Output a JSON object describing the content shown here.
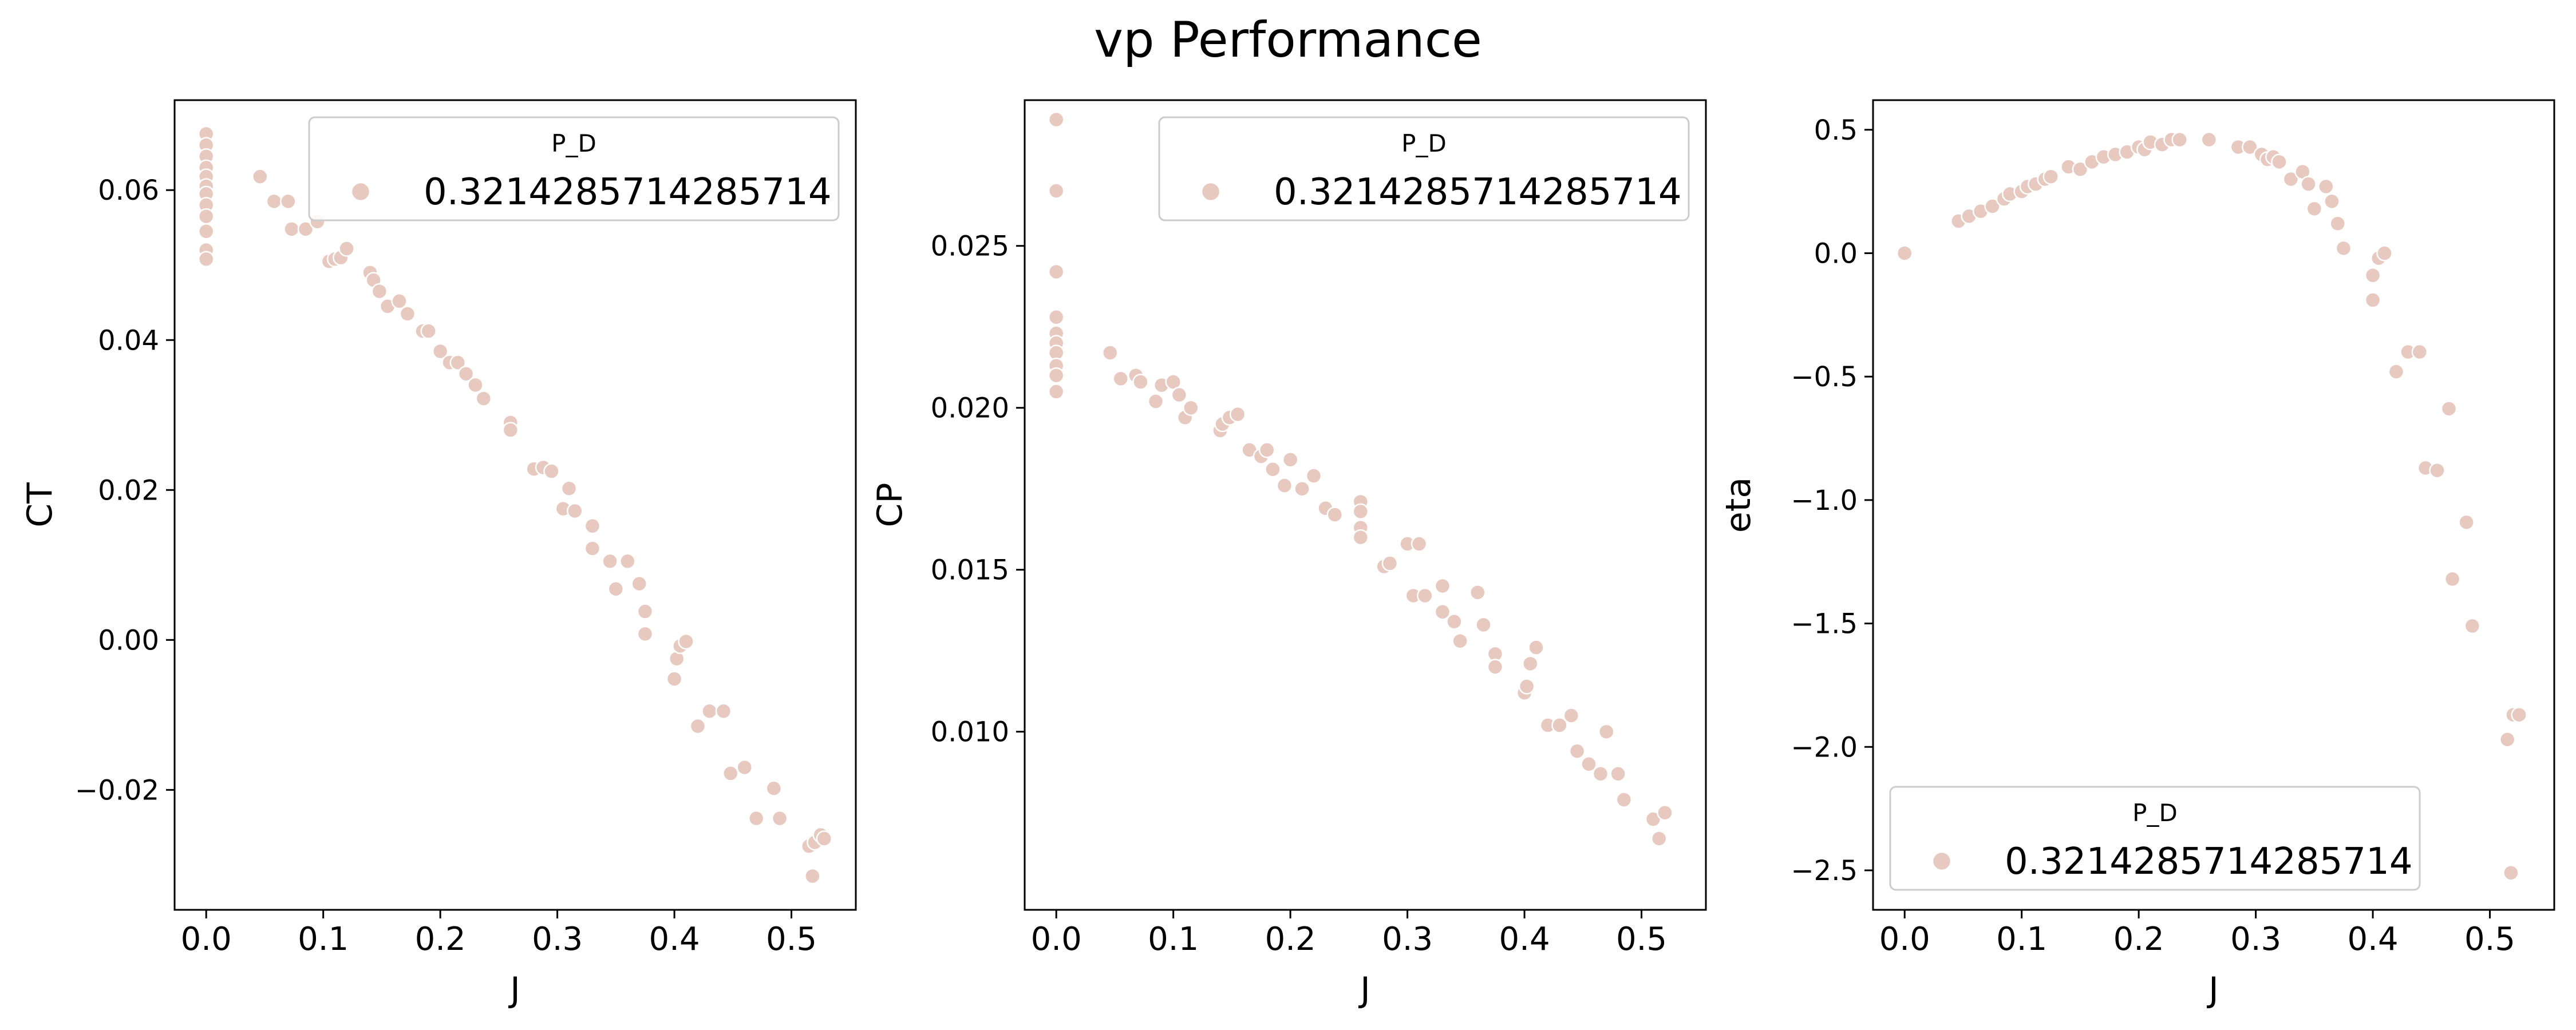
{
  "figure": {
    "title": "vp Performance"
  },
  "style": {
    "marker_color": "#e7c9bf",
    "marker_edge": "#ffffff",
    "axes_color": "#000000",
    "legend_edge": "#cccccc"
  },
  "chart_data": [
    {
      "type": "scatter",
      "xlabel": "J",
      "ylabel": "CT",
      "xlim": [
        -0.027,
        0.555
      ],
      "ylim": [
        -0.036,
        0.072
      ],
      "xticks": [
        0.0,
        0.1,
        0.2,
        0.3,
        0.4,
        0.5
      ],
      "xtick_labels": [
        "0.0",
        "0.1",
        "0.2",
        "0.3",
        "0.4",
        "0.5"
      ],
      "yticks": [
        -0.02,
        0.0,
        0.02,
        0.04,
        0.06
      ],
      "ytick_labels": [
        "−0.02",
        "0.00",
        "0.02",
        "0.04",
        "0.06"
      ],
      "legend": {
        "title": "P_D",
        "entries": [
          "0.3214285714285714"
        ],
        "placement": "top-right"
      },
      "grid": false,
      "series": [
        {
          "name": "0.3214285714285714",
          "points": [
            [
              0.0,
              0.0675
            ],
            [
              0.0,
              0.066
            ],
            [
              0.0,
              0.0645
            ],
            [
              0.0,
              0.063
            ],
            [
              0.0,
              0.0618
            ],
            [
              0.0,
              0.0605
            ],
            [
              0.0,
              0.0595
            ],
            [
              0.0,
              0.058
            ],
            [
              0.0,
              0.0565
            ],
            [
              0.0,
              0.0545
            ],
            [
              0.0,
              0.052
            ],
            [
              0.0,
              0.0508
            ],
            [
              0.046,
              0.0618
            ],
            [
              0.058,
              0.0585
            ],
            [
              0.07,
              0.0585
            ],
            [
              0.073,
              0.0548
            ],
            [
              0.085,
              0.0548
            ],
            [
              0.095,
              0.0558
            ],
            [
              0.105,
              0.0505
            ],
            [
              0.11,
              0.0508
            ],
            [
              0.115,
              0.051
            ],
            [
              0.12,
              0.0522
            ],
            [
              0.14,
              0.049
            ],
            [
              0.143,
              0.048
            ],
            [
              0.148,
              0.0465
            ],
            [
              0.155,
              0.0445
            ],
            [
              0.165,
              0.0452
            ],
            [
              0.172,
              0.0435
            ],
            [
              0.185,
              0.0412
            ],
            [
              0.19,
              0.0412
            ],
            [
              0.2,
              0.0385
            ],
            [
              0.208,
              0.037
            ],
            [
              0.215,
              0.037
            ],
            [
              0.222,
              0.0355
            ],
            [
              0.23,
              0.034
            ],
            [
              0.237,
              0.0322
            ],
            [
              0.26,
              0.029
            ],
            [
              0.26,
              0.028
            ],
            [
              0.28,
              0.0228
            ],
            [
              0.288,
              0.023
            ],
            [
              0.295,
              0.0225
            ],
            [
              0.305,
              0.0175
            ],
            [
              0.31,
              0.0202
            ],
            [
              0.315,
              0.0172
            ],
            [
              0.33,
              0.0152
            ],
            [
              0.33,
              0.0122
            ],
            [
              0.345,
              0.0105
            ],
            [
              0.35,
              0.0068
            ],
            [
              0.36,
              0.0105
            ],
            [
              0.37,
              0.0075
            ],
            [
              0.375,
              0.0038
            ],
            [
              0.375,
              0.0008
            ],
            [
              0.4,
              -0.0052
            ],
            [
              0.402,
              -0.0025
            ],
            [
              0.405,
              -0.0008
            ],
            [
              0.41,
              -0.0002
            ],
            [
              0.42,
              -0.0115
            ],
            [
              0.43,
              -0.0095
            ],
            [
              0.442,
              -0.0095
            ],
            [
              0.448,
              -0.0178
            ],
            [
              0.46,
              -0.017
            ],
            [
              0.47,
              -0.0238
            ],
            [
              0.485,
              -0.0198
            ],
            [
              0.49,
              -0.0238
            ],
            [
              0.515,
              -0.0275
            ],
            [
              0.518,
              -0.0315
            ],
            [
              0.52,
              -0.027
            ],
            [
              0.525,
              -0.026
            ],
            [
              0.528,
              -0.0265
            ]
          ]
        }
      ]
    },
    {
      "type": "scatter",
      "xlabel": "J",
      "ylabel": "CP",
      "xlim": [
        -0.027,
        0.555
      ],
      "ylim": [
        0.0045,
        0.0295
      ],
      "xticks": [
        0.0,
        0.1,
        0.2,
        0.3,
        0.4,
        0.5
      ],
      "xtick_labels": [
        "0.0",
        "0.1",
        "0.2",
        "0.3",
        "0.4",
        "0.5"
      ],
      "yticks": [
        0.01,
        0.015,
        0.02,
        0.025
      ],
      "ytick_labels": [
        "0.010",
        "0.015",
        "0.020",
        "0.025"
      ],
      "legend": {
        "title": "P_D",
        "entries": [
          "0.3214285714285714"
        ],
        "placement": "top-right"
      },
      "grid": false,
      "series": [
        {
          "name": "0.3214285714285714",
          "points": [
            [
              0.0,
              0.0289
            ],
            [
              0.0,
              0.0267
            ],
            [
              0.0,
              0.0242
            ],
            [
              0.0,
              0.0228
            ],
            [
              0.0,
              0.0223
            ],
            [
              0.0,
              0.022
            ],
            [
              0.0,
              0.0217
            ],
            [
              0.0,
              0.0213
            ],
            [
              0.0,
              0.021
            ],
            [
              0.0,
              0.0205
            ],
            [
              0.046,
              0.0217
            ],
            [
              0.055,
              0.0209
            ],
            [
              0.068,
              0.021
            ],
            [
              0.072,
              0.0208
            ],
            [
              0.085,
              0.0202
            ],
            [
              0.09,
              0.0207
            ],
            [
              0.1,
              0.0208
            ],
            [
              0.105,
              0.0204
            ],
            [
              0.11,
              0.0197
            ],
            [
              0.115,
              0.02
            ],
            [
              0.14,
              0.0193
            ],
            [
              0.142,
              0.0195
            ],
            [
              0.148,
              0.0197
            ],
            [
              0.155,
              0.0198
            ],
            [
              0.165,
              0.0187
            ],
            [
              0.175,
              0.0185
            ],
            [
              0.18,
              0.0187
            ],
            [
              0.185,
              0.0181
            ],
            [
              0.195,
              0.0176
            ],
            [
              0.2,
              0.0184
            ],
            [
              0.21,
              0.0175
            ],
            [
              0.22,
              0.0179
            ],
            [
              0.23,
              0.0169
            ],
            [
              0.238,
              0.0167
            ],
            [
              0.26,
              0.0171
            ],
            [
              0.26,
              0.0168
            ],
            [
              0.26,
              0.0163
            ],
            [
              0.26,
              0.016
            ],
            [
              0.28,
              0.0151
            ],
            [
              0.285,
              0.0152
            ],
            [
              0.3,
              0.0158
            ],
            [
              0.305,
              0.0142
            ],
            [
              0.31,
              0.0158
            ],
            [
              0.315,
              0.0142
            ],
            [
              0.33,
              0.0145
            ],
            [
              0.33,
              0.0137
            ],
            [
              0.34,
              0.0134
            ],
            [
              0.345,
              0.0128
            ],
            [
              0.36,
              0.0143
            ],
            [
              0.365,
              0.0133
            ],
            [
              0.375,
              0.0124
            ],
            [
              0.375,
              0.012
            ],
            [
              0.4,
              0.0112
            ],
            [
              0.402,
              0.0114
            ],
            [
              0.405,
              0.0121
            ],
            [
              0.41,
              0.0126
            ],
            [
              0.42,
              0.0102
            ],
            [
              0.43,
              0.0102
            ],
            [
              0.44,
              0.0105
            ],
            [
              0.445,
              0.0094
            ],
            [
              0.455,
              0.009
            ],
            [
              0.465,
              0.0087
            ],
            [
              0.47,
              0.01
            ],
            [
              0.48,
              0.0087
            ],
            [
              0.485,
              0.0079
            ],
            [
              0.51,
              0.0073
            ],
            [
              0.515,
              0.0067
            ],
            [
              0.52,
              0.0075
            ]
          ]
        }
      ]
    },
    {
      "type": "scatter",
      "xlabel": "J",
      "ylabel": "eta",
      "xlim": [
        -0.027,
        0.555
      ],
      "ylim": [
        -2.66,
        0.62
      ],
      "xticks": [
        0.0,
        0.1,
        0.2,
        0.3,
        0.4,
        0.5
      ],
      "xtick_labels": [
        "0.0",
        "0.1",
        "0.2",
        "0.3",
        "0.4",
        "0.5"
      ],
      "yticks": [
        -2.5,
        -2.0,
        -1.5,
        -1.0,
        -0.5,
        0.0,
        0.5
      ],
      "ytick_labels": [
        "−2.5",
        "−2.0",
        "−1.5",
        "−1.0",
        "−0.5",
        "0.0",
        "0.5"
      ],
      "legend": {
        "title": "P_D",
        "entries": [
          "0.3214285714285714"
        ],
        "placement": "bottom-left"
      },
      "grid": false,
      "series": [
        {
          "name": "0.3214285714285714",
          "points": [
            [
              0.0,
              0.0
            ],
            [
              0.046,
              0.13
            ],
            [
              0.055,
              0.15
            ],
            [
              0.065,
              0.17
            ],
            [
              0.075,
              0.19
            ],
            [
              0.085,
              0.22
            ],
            [
              0.09,
              0.24
            ],
            [
              0.1,
              0.25
            ],
            [
              0.105,
              0.27
            ],
            [
              0.112,
              0.28
            ],
            [
              0.12,
              0.3
            ],
            [
              0.125,
              0.31
            ],
            [
              0.14,
              0.35
            ],
            [
              0.15,
              0.34
            ],
            [
              0.16,
              0.37
            ],
            [
              0.17,
              0.39
            ],
            [
              0.18,
              0.4
            ],
            [
              0.19,
              0.41
            ],
            [
              0.2,
              0.43
            ],
            [
              0.205,
              0.42
            ],
            [
              0.21,
              0.45
            ],
            [
              0.22,
              0.44
            ],
            [
              0.228,
              0.46
            ],
            [
              0.235,
              0.46
            ],
            [
              0.26,
              0.46
            ],
            [
              0.285,
              0.43
            ],
            [
              0.295,
              0.43
            ],
            [
              0.305,
              0.4
            ],
            [
              0.31,
              0.38
            ],
            [
              0.315,
              0.39
            ],
            [
              0.32,
              0.37
            ],
            [
              0.33,
              0.3
            ],
            [
              0.34,
              0.33
            ],
            [
              0.345,
              0.28
            ],
            [
              0.35,
              0.18
            ],
            [
              0.36,
              0.27
            ],
            [
              0.365,
              0.21
            ],
            [
              0.37,
              0.12
            ],
            [
              0.375,
              0.02
            ],
            [
              0.4,
              -0.19
            ],
            [
              0.4,
              -0.09
            ],
            [
              0.405,
              -0.02
            ],
            [
              0.41,
              0.0
            ],
            [
              0.42,
              -0.48
            ],
            [
              0.43,
              -0.4
            ],
            [
              0.44,
              -0.4
            ],
            [
              0.445,
              -0.87
            ],
            [
              0.455,
              -0.88
            ],
            [
              0.465,
              -0.63
            ],
            [
              0.468,
              -1.32
            ],
            [
              0.48,
              -1.09
            ],
            [
              0.485,
              -1.51
            ],
            [
              0.515,
              -1.97
            ],
            [
              0.518,
              -2.51
            ],
            [
              0.52,
              -1.87
            ],
            [
              0.525,
              -1.87
            ]
          ]
        }
      ]
    }
  ]
}
